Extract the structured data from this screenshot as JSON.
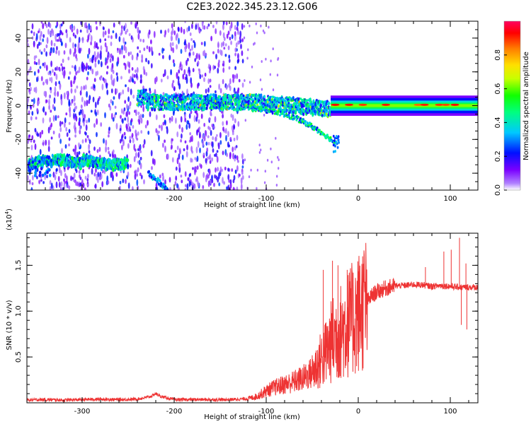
{
  "figure": {
    "title": "C2E3.2022.345.23.12.G06"
  },
  "chart_data": [
    {
      "type": "heatmap",
      "xlabel": "Height of straight line (km)",
      "ylabel": "Frequency (Hz)",
      "xlim": [
        -360,
        130
      ],
      "ylim": [
        -50,
        50
      ],
      "x_ticks": [
        -300,
        -200,
        -100,
        0,
        100
      ],
      "x_tick_labels": [
        "-300",
        "-200",
        "-100",
        "0",
        "100"
      ],
      "y_ticks": [
        -40,
        -20,
        0,
        20,
        40
      ],
      "y_tick_labels": [
        "-40",
        "-20",
        "0",
        "20",
        "40"
      ],
      "colorbar": {
        "label": "Normalized spectral amplitude",
        "range": [
          0,
          1
        ],
        "ticks": [
          0.0,
          0.2,
          0.4,
          0.6,
          0.8
        ],
        "tick_labels": [
          "0.0",
          "0.2",
          "0.4",
          "0.6",
          "0.8"
        ],
        "colormap": [
          "#ffffff",
          "#7a00ff",
          "#0010ff",
          "#00c8ff",
          "#00ff40",
          "#c8ff00",
          "#ffe000",
          "#ff7a00",
          "#ff0000",
          "#ff0060"
        ]
      },
      "features": [
        {
          "name": "scattered noise band",
          "x_range": [
            -360,
            -125
          ],
          "freq_range": [
            -50,
            50
          ],
          "amplitude": 0.2
        },
        {
          "name": "low-frequency track",
          "x_range": [
            -358,
            -250
          ],
          "freq_range": [
            -40,
            -30
          ],
          "amplitude": 0.45
        },
        {
          "name": "descending track",
          "x_range": [
            -228,
            -207
          ],
          "freq_range": [
            -50,
            -40
          ],
          "amplitude": 0.35
        },
        {
          "name": "zero-frequency band",
          "x_range": [
            -240,
            -30
          ],
          "freq_range": [
            -8,
            8
          ],
          "amplitude": 0.5
        },
        {
          "name": "descending branch",
          "x_range": [
            -115,
            -25
          ],
          "freq_range": [
            -28,
            2
          ],
          "amplitude": 0.45
        },
        {
          "name": "stable carrier",
          "x_range": [
            -30,
            130
          ],
          "freq_range": [
            -3,
            3
          ],
          "amplitude": 0.65
        }
      ]
    },
    {
      "type": "line",
      "xlabel": "Height of straight line (km)",
      "ylabel": "SNR (10 * v/v)",
      "scale_label": "(x10",
      "scale_exponent": "4",
      "xlim": [
        -360,
        130
      ],
      "ylim": [
        0,
        18500
      ],
      "x_ticks": [
        -300,
        -200,
        -100,
        0,
        100
      ],
      "x_tick_labels": [
        "-300",
        "-200",
        "-100",
        "0",
        "100"
      ],
      "y_ticks": [
        5000,
        10000,
        15000
      ],
      "y_tick_labels": [
        "0.5",
        "1.0",
        "1.5"
      ],
      "color": "#ee3333",
      "series": [
        {
          "x": [
            -360,
            -340,
            -320,
            -300,
            -280,
            -260,
            -240,
            -225,
            -220,
            -215,
            -200,
            -180,
            -160,
            -140,
            -120,
            -110,
            -100,
            -90,
            -80,
            -70,
            -60,
            -50,
            -45,
            -40,
            -35,
            -30,
            -25,
            -20,
            -15,
            -10,
            -5,
            0,
            5,
            10,
            15,
            20,
            25,
            30,
            40,
            50,
            60,
            70,
            80,
            90,
            100,
            110,
            120,
            130
          ],
          "y": [
            300,
            350,
            300,
            350,
            400,
            350,
            400,
            700,
            1000,
            700,
            350,
            350,
            350,
            350,
            450,
            700,
            1300,
            1700,
            2000,
            2300,
            2700,
            3300,
            4000,
            4700,
            5500,
            6500,
            7300,
            7600,
            8200,
            8700,
            9200,
            9800,
            10500,
            11100,
            11700,
            12100,
            12300,
            12500,
            12750,
            12800,
            12900,
            12850,
            12700,
            12800,
            12700,
            12600,
            12600,
            12600
          ]
        }
      ],
      "spikes": [
        {
          "x": -38,
          "y": 14500
        },
        {
          "x": -28,
          "y": 15500
        },
        {
          "x": -22,
          "y": 15000
        },
        {
          "x": -12,
          "y": 14500
        },
        {
          "x": -8,
          "y": 12500
        },
        {
          "x": 73,
          "y": 14800
        },
        {
          "x": 93,
          "y": 16500
        },
        {
          "x": 101,
          "y": 16700
        },
        {
          "x": 110,
          "y": 18000
        },
        {
          "x": 117,
          "y": 15200
        },
        {
          "x": 118,
          "y": 8000
        },
        {
          "x": 112,
          "y": 8500
        }
      ]
    }
  ]
}
